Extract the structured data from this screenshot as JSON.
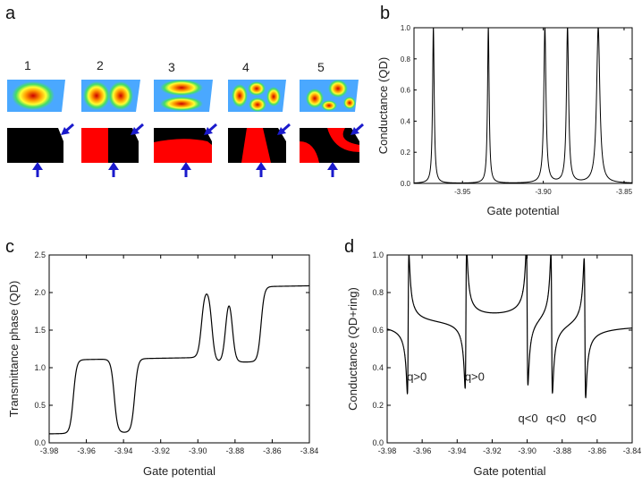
{
  "figure": {
    "panel_letters": {
      "a": "a",
      "b": "b",
      "c": "c",
      "d": "d"
    }
  },
  "panel_a": {
    "state_labels": [
      "1",
      "2",
      "3",
      "4",
      "5"
    ],
    "colors": {
      "nodal_positive": "#ff0000",
      "nodal_negative": "#000000",
      "arrow": "#1a1acc",
      "density_background": "#4aa8ff"
    }
  },
  "chart_data": [
    {
      "id": "b",
      "type": "line",
      "xlabel": "Gate potential",
      "ylabel": "Conductance (QD)",
      "xlim": [
        -3.98,
        -3.845
      ],
      "ylim": [
        0,
        1.0
      ],
      "xticks": [
        -3.95,
        -3.9,
        -3.85
      ],
      "xtick_labels": [
        "-3.95",
        "-3.90",
        "-3.85"
      ],
      "yticks": [
        0.0,
        0.2,
        0.4,
        0.6,
        0.8,
        1.0
      ],
      "ytick_labels": [
        "0.0",
        "0.2",
        "0.4",
        "0.6",
        "0.8",
        "1.0"
      ],
      "resonances": [
        {
          "x": -3.968,
          "width": 0.0006
        },
        {
          "x": -3.934,
          "width": 0.0006
        },
        {
          "x": -3.899,
          "width": 0.0008
        },
        {
          "x": -3.885,
          "width": 0.0008
        },
        {
          "x": -3.866,
          "width": 0.0012
        }
      ],
      "grid": false
    },
    {
      "id": "c",
      "type": "line",
      "xlabel": "Gate potential",
      "ylabel": "Transmittance phase (QD)",
      "xlim": [
        -3.98,
        -3.84
      ],
      "ylim": [
        0,
        2.5
      ],
      "xticks": [
        -3.98,
        -3.96,
        -3.94,
        -3.92,
        -3.9,
        -3.88,
        -3.86,
        -3.84
      ],
      "xtick_labels": [
        "-3.98",
        "-3.96",
        "-3.94",
        "-3.92",
        "-3.90",
        "-3.88",
        "-3.86",
        "-3.84"
      ],
      "yticks": [
        0.0,
        0.5,
        1.0,
        1.5,
        2.0,
        2.5
      ],
      "ytick_labels": [
        "0.0",
        "0.5",
        "1.0",
        "1.5",
        "2.0",
        "2.5"
      ],
      "steps": [
        {
          "x": -3.967,
          "from": 0.17,
          "to": 1.15
        },
        {
          "x": -3.945,
          "from": 1.15,
          "to": 0.17
        },
        {
          "x": -3.934,
          "from": 0.17,
          "to": 1.15
        },
        {
          "x": -3.898,
          "from": 1.22,
          "to": 2.15
        },
        {
          "x": -3.8925,
          "from": 2.15,
          "to": 1.15
        },
        {
          "x": -3.885,
          "from": 1.15,
          "to": 2.15
        },
        {
          "x": -3.8815,
          "from": 2.15,
          "to": 1.15
        },
        {
          "x": -3.866,
          "from": 1.15,
          "to": 2.15
        }
      ],
      "baseline_left": 0.15,
      "end_value": 2.16,
      "grid": false
    },
    {
      "id": "d",
      "type": "line",
      "xlabel": "Gate potential",
      "ylabel": "Conductance (QD+ring)",
      "xlim": [
        -3.98,
        -3.84
      ],
      "ylim": [
        0,
        1.0
      ],
      "xticks": [
        -3.98,
        -3.96,
        -3.94,
        -3.92,
        -3.9,
        -3.88,
        -3.86,
        -3.84
      ],
      "xtick_labels": [
        "-3.98",
        "-3.96",
        "-3.94",
        "-3.92",
        "-3.90",
        "-3.88",
        "-3.86",
        "-3.84"
      ],
      "yticks": [
        0.0,
        0.2,
        0.4,
        0.6,
        0.8,
        1.0
      ],
      "ytick_labels": [
        "0.0",
        "0.2",
        "0.4",
        "0.6",
        "0.8",
        "1.0"
      ],
      "background_level": 0.63,
      "fano_resonances": [
        {
          "x": -3.968,
          "q": 1
        },
        {
          "x": -3.935,
          "q": 1
        },
        {
          "x": -3.9,
          "q": -1
        },
        {
          "x": -3.886,
          "q": -1
        },
        {
          "x": -3.867,
          "q": -1
        }
      ],
      "annotations": [
        {
          "text": "q>0",
          "x": -3.963,
          "y": 0.33
        },
        {
          "text": "q>0",
          "x": -3.93,
          "y": 0.33
        },
        {
          "text": "q<0",
          "x": -3.8995,
          "y": 0.11
        },
        {
          "text": "q<0",
          "x": -3.8835,
          "y": 0.11
        },
        {
          "text": "q<0",
          "x": -3.866,
          "y": 0.11
        }
      ],
      "grid": false
    }
  ]
}
